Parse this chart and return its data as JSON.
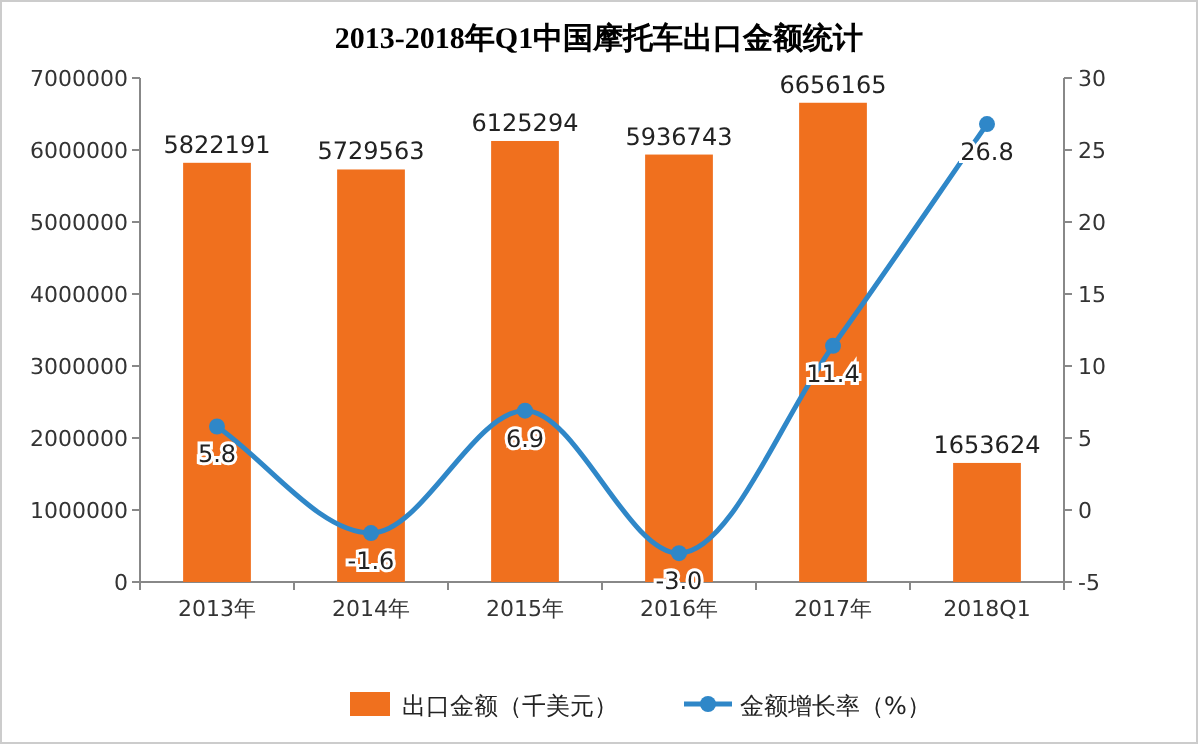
{
  "chart_data": {
    "type": "bar",
    "title": "2013-2018年Q1中国摩托车出口金额统计",
    "categories": [
      "2013年",
      "2014年",
      "2015年",
      "2016年",
      "2017年",
      "2018Q1"
    ],
    "series": [
      {
        "name": "出口金额（千美元）",
        "color": "#f0701e",
        "values": [
          5822191,
          5729563,
          6125294,
          5936743,
          6656165,
          1653624
        ],
        "value_labels": [
          "5822191",
          "5729563",
          "6125294",
          "5936743",
          "6656165",
          "1653624"
        ]
      },
      {
        "name": "金额增长率（%）",
        "type": "line",
        "axis": "y2",
        "color": "#2f87c8",
        "marker": "circle",
        "values": [
          5.8,
          -1.6,
          6.9,
          -3.0,
          11.4,
          26.8
        ],
        "value_labels": [
          "5.8",
          "-1.6",
          "6.9",
          "-3.0",
          "11.4",
          "26.8"
        ]
      }
    ],
    "ylim": [
      0,
      7000000
    ],
    "yticks": [
      0,
      1000000,
      2000000,
      3000000,
      4000000,
      5000000,
      6000000,
      7000000
    ],
    "y2lim": [
      -5,
      30
    ],
    "y2ticks": [
      -5,
      0,
      5,
      10,
      15,
      20,
      25,
      30
    ],
    "grid": false,
    "legend": "bottom"
  }
}
